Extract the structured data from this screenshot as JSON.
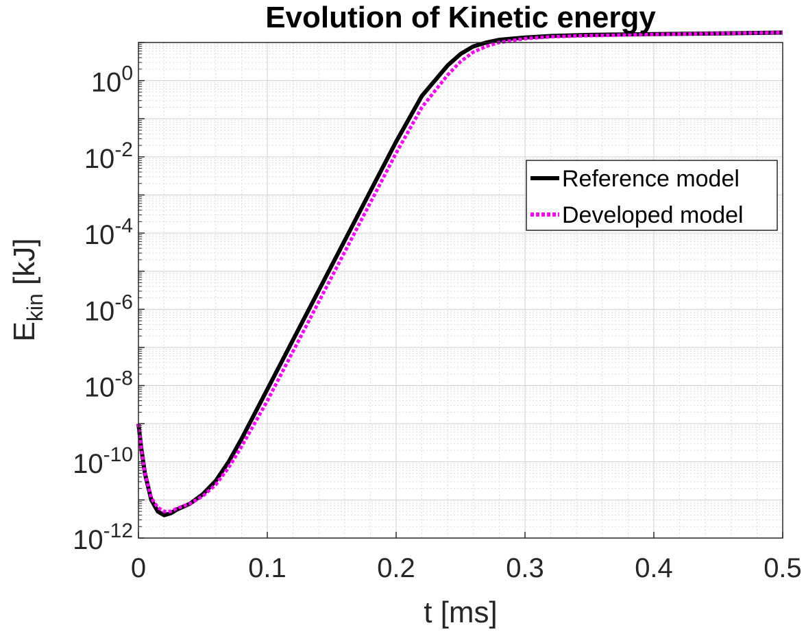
{
  "chart_data": {
    "type": "line",
    "title": "Evolution of Kinetic energy",
    "xlabel": "t [ms]",
    "ylabel_main": "E",
    "ylabel_sub": "kin",
    "ylabel_unit": " [kJ]",
    "xlim": [
      0,
      0.5
    ],
    "ylim_exp": [
      -12,
      1
    ],
    "yscale": "log",
    "grid": true,
    "x_ticks": [
      0,
      0.1,
      0.2,
      0.3,
      0.4,
      0.5
    ],
    "x_tick_labels": [
      "0",
      "0.1",
      "0.2",
      "0.3",
      "0.4",
      "0.5"
    ],
    "y_tick_exponents": [
      -12,
      -10,
      -8,
      -6,
      -4,
      -2,
      0
    ],
    "y_tick_base": "10",
    "legend_position": "upper-right",
    "series": [
      {
        "name": "Reference model",
        "color": "#000000",
        "style": "solid",
        "x": [
          0,
          0.002,
          0.005,
          0.01,
          0.015,
          0.02,
          0.025,
          0.03,
          0.04,
          0.05,
          0.06,
          0.07,
          0.08,
          0.09,
          0.1,
          0.12,
          0.14,
          0.16,
          0.18,
          0.2,
          0.22,
          0.24,
          0.25,
          0.26,
          0.27,
          0.28,
          0.29,
          0.3,
          0.32,
          0.35,
          0.4,
          0.45,
          0.5
        ],
        "log10_y": [
          -9.0,
          -9.6,
          -10.3,
          -11.0,
          -11.3,
          -11.4,
          -11.35,
          -11.25,
          -11.1,
          -10.85,
          -10.5,
          -10.0,
          -9.4,
          -8.75,
          -8.1,
          -6.8,
          -5.5,
          -4.2,
          -2.9,
          -1.6,
          -0.4,
          0.4,
          0.7,
          0.9,
          1.0,
          1.07,
          1.1,
          1.13,
          1.17,
          1.2,
          1.22,
          1.24,
          1.26
        ]
      },
      {
        "name": "Developed model",
        "color": "#ff00ff",
        "style": "dotted",
        "x": [
          0,
          0.002,
          0.005,
          0.01,
          0.015,
          0.02,
          0.025,
          0.03,
          0.04,
          0.05,
          0.06,
          0.07,
          0.08,
          0.09,
          0.1,
          0.12,
          0.14,
          0.16,
          0.18,
          0.2,
          0.22,
          0.24,
          0.25,
          0.26,
          0.27,
          0.28,
          0.29,
          0.3,
          0.32,
          0.35,
          0.4,
          0.45,
          0.5
        ],
        "log10_y": [
          -9.0,
          -9.6,
          -10.3,
          -10.95,
          -11.2,
          -11.3,
          -11.3,
          -11.22,
          -11.1,
          -10.9,
          -10.6,
          -10.15,
          -9.6,
          -9.0,
          -8.4,
          -7.1,
          -5.8,
          -4.5,
          -3.2,
          -1.9,
          -0.7,
          0.15,
          0.5,
          0.75,
          0.9,
          1.0,
          1.05,
          1.1,
          1.15,
          1.18,
          1.21,
          1.24,
          1.26
        ]
      }
    ]
  }
}
